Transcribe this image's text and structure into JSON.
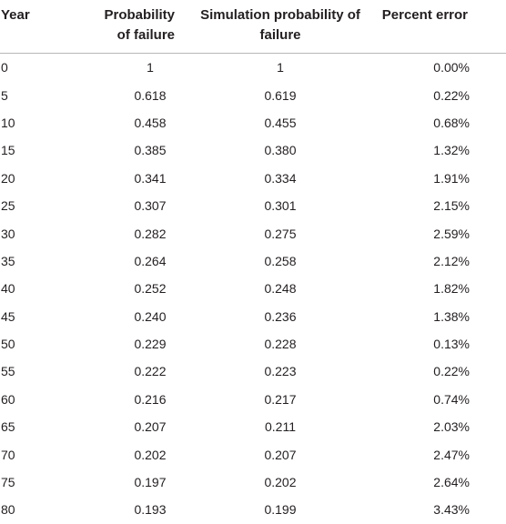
{
  "table": {
    "headers": {
      "year": "Year",
      "prob_line1": "Probability",
      "prob_line2": "of failure",
      "sim_line1": "Simulation probability of",
      "sim_line2": "failure",
      "error": "Percent error"
    },
    "rows": [
      {
        "year": "0",
        "prob": "1",
        "sim": "1",
        "error": "0.00%"
      },
      {
        "year": "5",
        "prob": "0.618",
        "sim": "0.619",
        "error": "0.22%"
      },
      {
        "year": "10",
        "prob": "0.458",
        "sim": "0.455",
        "error": "0.68%"
      },
      {
        "year": "15",
        "prob": "0.385",
        "sim": "0.380",
        "error": "1.32%"
      },
      {
        "year": "20",
        "prob": "0.341",
        "sim": "0.334",
        "error": "1.91%"
      },
      {
        "year": "25",
        "prob": "0.307",
        "sim": "0.301",
        "error": "2.15%"
      },
      {
        "year": "30",
        "prob": "0.282",
        "sim": "0.275",
        "error": "2.59%"
      },
      {
        "year": "35",
        "prob": "0.264",
        "sim": "0.258",
        "error": "2.12%"
      },
      {
        "year": "40",
        "prob": "0.252",
        "sim": "0.248",
        "error": "1.82%"
      },
      {
        "year": "45",
        "prob": "0.240",
        "sim": "0.236",
        "error": "1.38%"
      },
      {
        "year": "50",
        "prob": "0.229",
        "sim": "0.228",
        "error": "0.13%"
      },
      {
        "year": "55",
        "prob": "0.222",
        "sim": "0.223",
        "error": "0.22%"
      },
      {
        "year": "60",
        "prob": "0.216",
        "sim": "0.217",
        "error": "0.74%"
      },
      {
        "year": "65",
        "prob": "0.207",
        "sim": "0.211",
        "error": "2.03%"
      },
      {
        "year": "70",
        "prob": "0.202",
        "sim": "0.207",
        "error": "2.47%"
      },
      {
        "year": "75",
        "prob": "0.197",
        "sim": "0.202",
        "error": "2.64%"
      },
      {
        "year": "80",
        "prob": "0.193",
        "sim": "0.199",
        "error": "3.43%"
      }
    ]
  }
}
